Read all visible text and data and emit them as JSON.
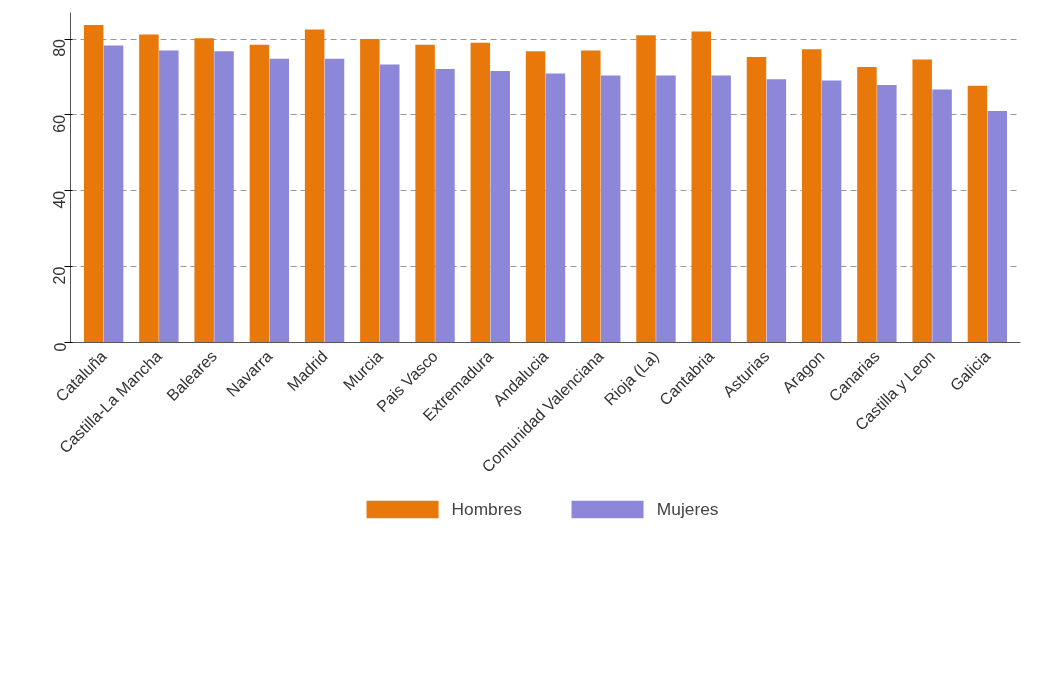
{
  "chart_data": {
    "type": "bar",
    "categories": [
      "Cataluña",
      "Castilla-La Mancha",
      "Baleares",
      "Navarra",
      "Madrid",
      "Murcia",
      "Pais Vasco",
      "Extremadura",
      "Andalucia",
      "Comunidad Valenciana",
      "Rioja (La)",
      "Cantabria",
      "Asturias",
      "Aragon",
      "Canarias",
      "Castilla y Leon",
      "Galicia"
    ],
    "series": [
      {
        "name": "Hombres",
        "color": "#e8780a",
        "values": [
          83.7,
          81.2,
          80.2,
          78.5,
          82.5,
          80,
          78.5,
          79,
          76.8,
          77,
          81,
          82,
          75.3,
          77.3,
          72.6,
          74.6,
          67.7
        ]
      },
      {
        "name": "Mujeres",
        "color": "#8c87d9",
        "values": [
          78.3,
          77,
          76.8,
          74.8,
          74.8,
          73.3,
          72.1,
          71.6,
          70.9,
          70.4,
          70.4,
          70.4,
          69.4,
          69.1,
          67.9,
          66.7,
          61
        ]
      }
    ],
    "ylim": [
      0,
      87
    ],
    "yticks": [
      0,
      20,
      40,
      60,
      80
    ],
    "grid": "y",
    "legend": "bottom"
  }
}
